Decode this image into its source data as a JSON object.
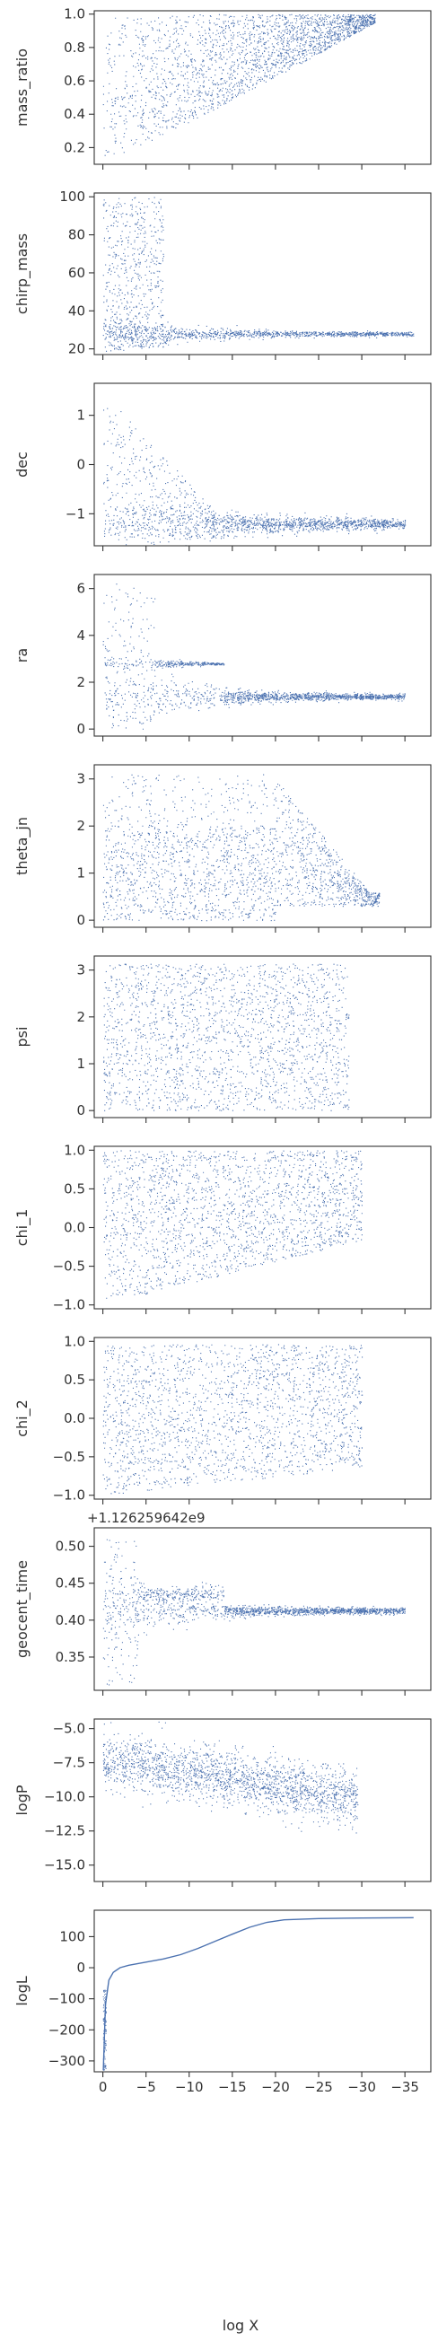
{
  "figure": {
    "marker_color": "#4c72b0",
    "axis_color": "#333333",
    "xlabel": "log X",
    "x_ticks": [
      0,
      -5,
      -10,
      -15,
      -20,
      -25,
      -30,
      -35
    ],
    "x_tick_labels": [
      "0",
      "−5",
      "−10",
      "−15",
      "−20",
      "−25",
      "−30",
      "−35"
    ],
    "xlim": [
      1,
      -38
    ]
  },
  "chart_data": [
    {
      "type": "scatter",
      "ylabel": "mass_ratio",
      "ylim": [
        0.1,
        1.02
      ],
      "y_ticks": [
        0.2,
        0.4,
        0.6,
        0.8,
        1.0
      ],
      "y_tick_labels": [
        "0.2",
        "0.4",
        "0.6",
        "0.8",
        "1.0"
      ],
      "x_range": [
        0,
        -32
      ],
      "trend": "lower bound of mass_ratio rises from 0.12 at log X = 0 to about 0.95 near log X = -31; upper bound stays at 1.0"
    },
    {
      "type": "scatter",
      "ylabel": "chirp_mass",
      "ylim": [
        17,
        102
      ],
      "y_ticks": [
        20,
        40,
        60,
        80,
        100
      ],
      "y_tick_labels": [
        "20",
        "40",
        "60",
        "80",
        "100"
      ],
      "x_range": [
        0,
        -36
      ],
      "trend": "broad spread 20-100 for log X > -7, converging to a narrow band near 28 by log X ≈ -35"
    },
    {
      "type": "scatter",
      "ylabel": "dec",
      "ylim": [
        -1.65,
        1.65
      ],
      "y_ticks": [
        -1,
        0,
        1
      ],
      "y_tick_labels": [
        "−1",
        "0",
        "1"
      ],
      "x_range": [
        0,
        -35
      ],
      "trend": "spread -1.5 to 1.5 for log X > -14, converging to about -1.2"
    },
    {
      "type": "scatter",
      "ylabel": "ra",
      "ylim": [
        -0.3,
        6.6
      ],
      "y_ticks": [
        0,
        2,
        4,
        6
      ],
      "y_tick_labels": [
        "0",
        "2",
        "4",
        "6"
      ],
      "x_range": [
        0,
        -35
      ],
      "trend": "spread 0 to 6.3 early, side branch near 2.8 ending at log X ≈ -14, converging to about 1.4"
    },
    {
      "type": "scatter",
      "ylabel": "theta_jn",
      "ylim": [
        -0.15,
        3.3
      ],
      "y_ticks": [
        0,
        1,
        2,
        3
      ],
      "y_tick_labels": [
        "0",
        "1",
        "2",
        "3"
      ],
      "x_range": [
        0,
        -32
      ],
      "trend": "spread 0 to 3.1, upper edge drops after log X ≈ -20, cluster near 0.3-0.8 at log X ≈ -30"
    },
    {
      "type": "scatter",
      "ylabel": "psi",
      "ylim": [
        -0.15,
        3.3
      ],
      "y_ticks": [
        0,
        1,
        2,
        3
      ],
      "y_tick_labels": [
        "0",
        "1",
        "2",
        "3"
      ],
      "x_range": [
        0,
        -29
      ],
      "trend": "uniform between 0 and 3.14 up to log X ≈ -28"
    },
    {
      "type": "scatter",
      "ylabel": "chi_1",
      "ylim": [
        -1.05,
        1.05
      ],
      "y_ticks": [
        -1.0,
        -0.5,
        0.0,
        0.5,
        1.0
      ],
      "y_tick_labels": [
        "−1.0",
        "−0.5",
        "0.0",
        "0.5",
        "1.0"
      ],
      "x_range": [
        0,
        -30
      ],
      "trend": "spread -1 to 1 early, lower edge rises toward 0 by log X ≈ -30"
    },
    {
      "type": "scatter",
      "ylabel": "chi_2",
      "ylim": [
        -1.05,
        1.05
      ],
      "y_ticks": [
        -1.0,
        -0.5,
        0.0,
        0.5,
        1.0
      ],
      "y_tick_labels": [
        "−1.0",
        "−0.5",
        "0.0",
        "0.5",
        "1.0"
      ],
      "x_range": [
        0,
        -30
      ],
      "trend": "roughly uniform between -1 and 1, narrowing slightly at late log X"
    },
    {
      "type": "scatter",
      "ylabel": "geocent_time",
      "offset_text": "+1.126259642e9",
      "ylim": [
        0.305,
        0.525
      ],
      "y_ticks": [
        0.35,
        0.4,
        0.45,
        0.5
      ],
      "y_tick_labels": [
        "0.35",
        "0.40",
        "0.45",
        "0.50"
      ],
      "x_range": [
        0,
        -35
      ],
      "trend": "spread 0.31 to 0.51 early, side branch near 0.435 ending at log X ≈ -14, converging to 0.413"
    },
    {
      "type": "scatter",
      "ylabel": "logP",
      "ylim": [
        -16.2,
        -4.3
      ],
      "y_ticks": [
        -5.0,
        -7.5,
        -10.0,
        -12.5,
        -15.0
      ],
      "y_tick_labels": [
        "−5.0",
        "−7.5",
        "−10.0",
        "−12.5",
        "−15.0"
      ],
      "x_range": [
        0,
        -30
      ],
      "trend": "logP decreases from about -7 at log X = 0 to about -10 near log X = -29"
    },
    {
      "type": "line",
      "ylabel": "logL",
      "ylim": [
        -335,
        185
      ],
      "y_ticks": [
        100,
        0,
        -100,
        -200,
        -300
      ],
      "y_tick_labels": [
        "100",
        "0",
        "−100",
        "−200",
        "−300"
      ],
      "x": [
        -0.05,
        -0.3,
        -0.7,
        -1.2,
        -2,
        -3,
        -5,
        -7,
        -9,
        -11,
        -13,
        -15,
        -17,
        -19,
        -21,
        -25,
        -30,
        -36
      ],
      "y": [
        -330,
        -120,
        -40,
        -15,
        0,
        8,
        18,
        28,
        42,
        62,
        85,
        108,
        130,
        146,
        154,
        158,
        160,
        161
      ]
    }
  ]
}
